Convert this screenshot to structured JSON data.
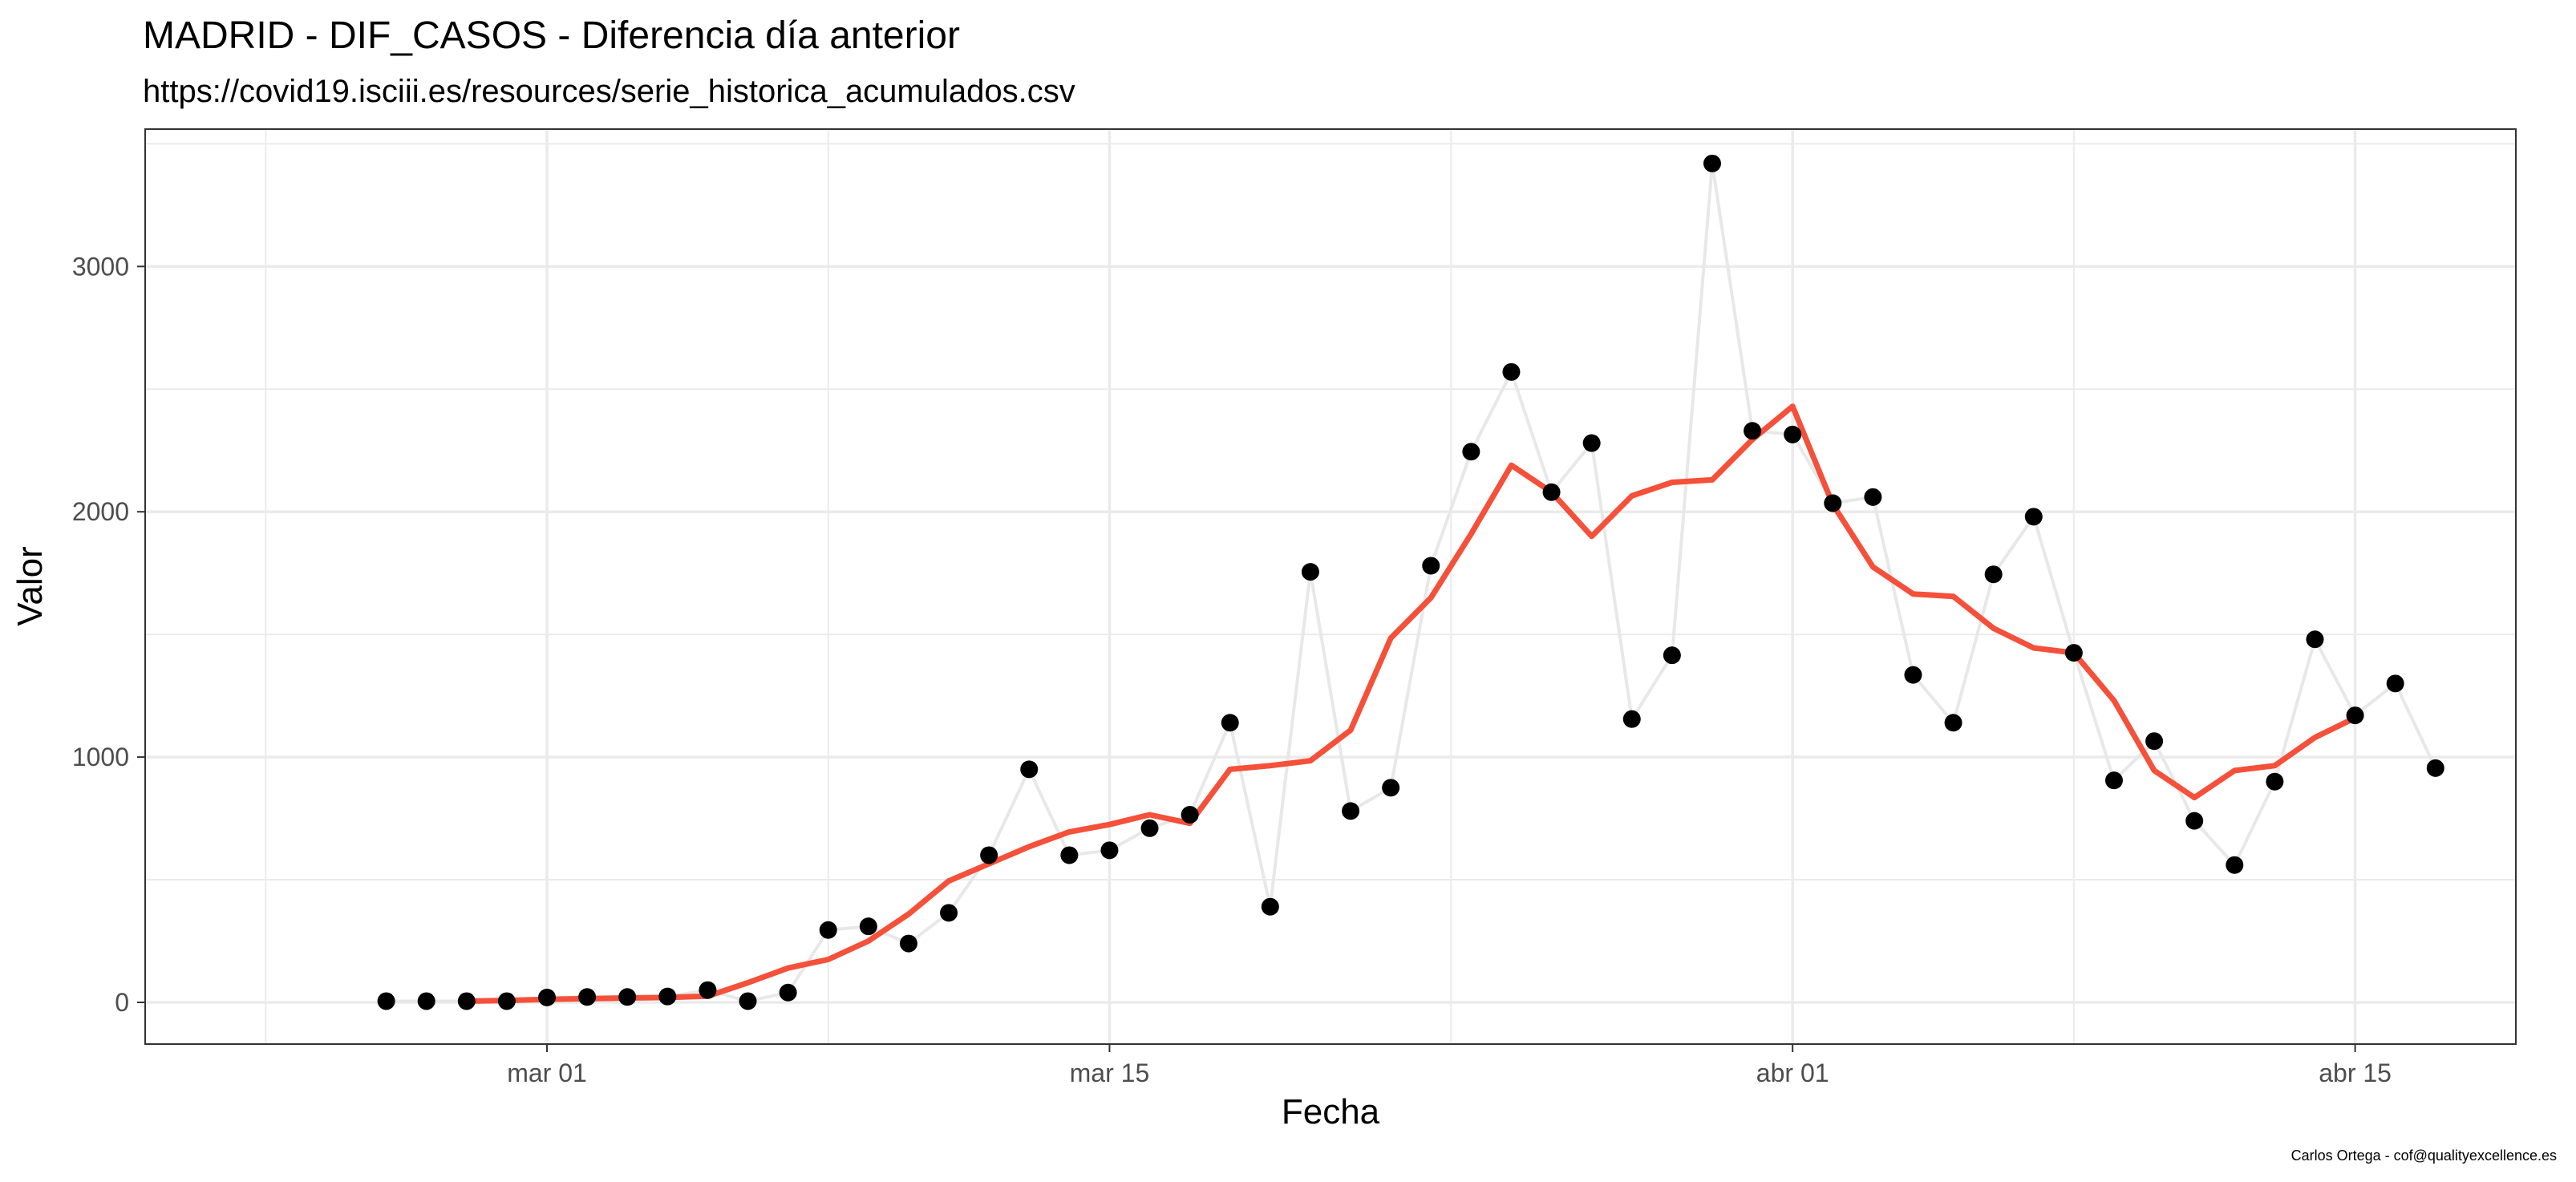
{
  "chart_data": {
    "type": "line",
    "title": "MADRID - DIF_CASOS - Diferencia día anterior",
    "subtitle": "https://covid19.isciii.es/resources/serie_historica_acumulados.csv",
    "xlabel": "Fecha",
    "ylabel": "Valor",
    "caption": "Carlos Ortega - cof@qualityexcellence.es",
    "x_tick_labels": [
      "mar 01",
      "mar 15",
      "abr 01",
      "abr 15"
    ],
    "x_ticks": [
      "2020-03-01",
      "2020-03-15",
      "2020-04-01",
      "2020-04-15"
    ],
    "y_ticks": [
      0,
      1000,
      2000,
      3000
    ],
    "xlim": [
      "2020-02-20",
      "2020-04-19"
    ],
    "ylim": [
      -170,
      3560
    ],
    "grid": true,
    "colors": {
      "raw_line": "#e8e8e8",
      "points": "#000000",
      "smooth_line": "#f4503a",
      "grid": "#ebebeb",
      "panel_border": "#333333"
    },
    "series": [
      {
        "style": "points+line",
        "x": [
          "2020-02-26",
          "2020-02-27",
          "2020-02-28",
          "2020-02-29",
          "2020-03-01",
          "2020-03-02",
          "2020-03-03",
          "2020-03-04",
          "2020-03-05",
          "2020-03-06",
          "2020-03-07",
          "2020-03-08",
          "2020-03-09",
          "2020-03-10",
          "2020-03-11",
          "2020-03-12",
          "2020-03-13",
          "2020-03-14",
          "2020-03-15",
          "2020-03-16",
          "2020-03-17",
          "2020-03-18",
          "2020-03-19",
          "2020-03-20",
          "2020-03-21",
          "2020-03-22",
          "2020-03-23",
          "2020-03-24",
          "2020-03-25",
          "2020-03-26",
          "2020-03-27",
          "2020-03-28",
          "2020-03-29",
          "2020-03-30",
          "2020-03-31",
          "2020-04-01",
          "2020-04-02",
          "2020-04-03",
          "2020-04-04",
          "2020-04-05",
          "2020-04-06",
          "2020-04-07",
          "2020-04-08",
          "2020-04-09",
          "2020-04-10",
          "2020-04-11",
          "2020-04-12",
          "2020-04-13",
          "2020-04-14",
          "2020-04-15",
          "2020-04-16",
          "2020-04-17"
        ],
        "values": [
          5,
          5,
          5,
          5,
          20,
          22,
          22,
          24,
          50,
          5,
          40,
          295,
          310,
          240,
          365,
          600,
          950,
          600,
          620,
          710,
          765,
          1140,
          390,
          1755,
          780,
          875,
          1780,
          2245,
          2570,
          2080,
          2280,
          1155,
          1415,
          3420,
          2330,
          2315,
          2035,
          2060,
          1335,
          1140,
          1745,
          1980,
          1425,
          905,
          1065,
          740,
          560,
          900,
          1480,
          1170,
          1300,
          955
        ]
      },
      {
        "style": "smooth",
        "x": [
          "2020-02-28",
          "2020-02-29",
          "2020-03-01",
          "2020-03-02",
          "2020-03-03",
          "2020-03-04",
          "2020-03-05",
          "2020-03-06",
          "2020-03-07",
          "2020-03-08",
          "2020-03-09",
          "2020-03-10",
          "2020-03-11",
          "2020-03-12",
          "2020-03-13",
          "2020-03-14",
          "2020-03-15",
          "2020-03-16",
          "2020-03-17",
          "2020-03-18",
          "2020-03-19",
          "2020-03-20",
          "2020-03-21",
          "2020-03-22",
          "2020-03-23",
          "2020-03-24",
          "2020-03-25",
          "2020-03-26",
          "2020-03-27",
          "2020-03-28",
          "2020-03-29",
          "2020-03-30",
          "2020-03-31",
          "2020-04-01",
          "2020-04-02",
          "2020-04-03",
          "2020-04-04",
          "2020-04-05",
          "2020-04-06",
          "2020-04-07",
          "2020-04-08",
          "2020-04-09",
          "2020-04-10",
          "2020-04-11",
          "2020-04-12",
          "2020-04-13",
          "2020-04-14",
          "2020-04-15"
        ],
        "values": [
          5,
          8,
          12,
          15,
          18,
          20,
          25,
          80,
          140,
          175,
          250,
          360,
          495,
          565,
          635,
          695,
          725,
          765,
          730,
          950,
          965,
          985,
          1110,
          1485,
          1650,
          1910,
          2190,
          2080,
          1900,
          2065,
          2120,
          2130,
          2295,
          2430,
          2030,
          1775,
          1665,
          1655,
          1525,
          1445,
          1425,
          1230,
          945,
          835,
          945,
          965,
          1080,
          1160
        ]
      }
    ]
  }
}
